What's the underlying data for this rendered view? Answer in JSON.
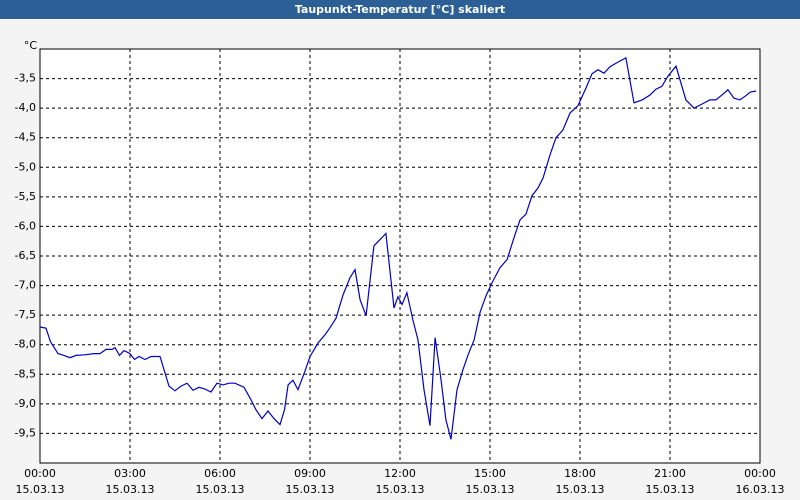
{
  "chart_data": {
    "type": "line",
    "title": "Taupunkt-Temperatur [°C] skaliert",
    "y_unit": "°C",
    "xlim": [
      0,
      24
    ],
    "ylim": [
      -10,
      -3
    ],
    "grid": true,
    "xticks": [
      {
        "value": 0,
        "label": "00:00",
        "date": "15.03.13"
      },
      {
        "value": 3,
        "label": "03:00",
        "date": "15.03.13"
      },
      {
        "value": 6,
        "label": "06:00",
        "date": "15.03.13"
      },
      {
        "value": 9,
        "label": "09:00",
        "date": "15.03.13"
      },
      {
        "value": 12,
        "label": "12:00",
        "date": "15.03.13"
      },
      {
        "value": 15,
        "label": "15:00",
        "date": "15.03.13"
      },
      {
        "value": 18,
        "label": "18:00",
        "date": "15.03.13"
      },
      {
        "value": 21,
        "label": "21:00",
        "date": "15.03.13"
      },
      {
        "value": 24,
        "label": "00:00",
        "date": "16.03.13"
      }
    ],
    "yticks": [
      {
        "value": -9.5,
        "label": "-9,5"
      },
      {
        "value": -9,
        "label": "-9,0"
      },
      {
        "value": -8.5,
        "label": "-8,5"
      },
      {
        "value": -8,
        "label": "-8,0"
      },
      {
        "value": -7.5,
        "label": "-7,5"
      },
      {
        "value": -7,
        "label": "-7,0"
      },
      {
        "value": -6.5,
        "label": "-6,5"
      },
      {
        "value": -6,
        "label": "-6,0"
      },
      {
        "value": -5.5,
        "label": "-5,5"
      },
      {
        "value": -5,
        "label": "-5,0"
      },
      {
        "value": -4.5,
        "label": "-4,5"
      },
      {
        "value": -4,
        "label": "-4,0"
      },
      {
        "value": -3.5,
        "label": "-3,5"
      }
    ],
    "series": [
      {
        "color": "#0000c8",
        "x": [
          0,
          0.2,
          0.35,
          0.6,
          0.8,
          1.0,
          1.2,
          1.5,
          1.8,
          2.0,
          2.2,
          2.4,
          2.5,
          2.65,
          2.8,
          3.0,
          3.15,
          3.3,
          3.5,
          3.7,
          4.0,
          4.3,
          4.5,
          4.7,
          4.9,
          5.1,
          5.3,
          5.5,
          5.7,
          5.9,
          6.1,
          6.3,
          6.5,
          6.8,
          7.0,
          7.2,
          7.4,
          7.6,
          7.8,
          8.0,
          8.15,
          8.27,
          8.43,
          8.6,
          8.83,
          9.0,
          9.27,
          9.5,
          9.67,
          9.87,
          10.1,
          10.33,
          10.5,
          10.67,
          10.87,
          11.13,
          11.53,
          11.8,
          11.93,
          12.07,
          12.23,
          12.43,
          12.6,
          12.8,
          13.0,
          13.17,
          13.37,
          13.53,
          13.7,
          13.9,
          14.1,
          14.27,
          14.47,
          14.67,
          14.87,
          15.07,
          15.33,
          15.57,
          15.8,
          16.0,
          16.2,
          16.4,
          16.6,
          16.77,
          17.0,
          17.2,
          17.43,
          17.67,
          17.93,
          18.2,
          18.4,
          18.6,
          18.8,
          19.0,
          19.27,
          19.53,
          19.8,
          20.07,
          20.33,
          20.53,
          20.73,
          20.93,
          21.2,
          21.53,
          21.8,
          22.07,
          22.33,
          22.53,
          22.73,
          22.93,
          23.13,
          23.33,
          23.53,
          23.67,
          23.87
        ],
        "values": [
          -7.7,
          -7.72,
          -7.95,
          -8.15,
          -8.18,
          -8.22,
          -8.18,
          -8.17,
          -8.15,
          -8.15,
          -8.08,
          -8.08,
          -8.05,
          -8.18,
          -8.1,
          -8.15,
          -8.25,
          -8.2,
          -8.25,
          -8.2,
          -8.2,
          -8.7,
          -8.78,
          -8.7,
          -8.65,
          -8.77,
          -8.72,
          -8.75,
          -8.8,
          -8.65,
          -8.68,
          -8.65,
          -8.65,
          -8.72,
          -8.9,
          -9.1,
          -9.25,
          -9.12,
          -9.25,
          -9.35,
          -9.1,
          -8.68,
          -8.6,
          -8.76,
          -8.45,
          -8.2,
          -7.97,
          -7.83,
          -7.71,
          -7.55,
          -7.16,
          -6.87,
          -6.73,
          -7.24,
          -7.51,
          -6.33,
          -6.12,
          -7.38,
          -7.19,
          -7.32,
          -7.12,
          -7.58,
          -7.92,
          -8.76,
          -9.37,
          -7.88,
          -8.6,
          -9.27,
          -9.6,
          -8.76,
          -8.42,
          -8.17,
          -7.92,
          -7.45,
          -7.17,
          -6.95,
          -6.7,
          -6.56,
          -6.19,
          -5.89,
          -5.79,
          -5.48,
          -5.35,
          -5.18,
          -4.79,
          -4.5,
          -4.37,
          -4.08,
          -3.96,
          -3.66,
          -3.42,
          -3.35,
          -3.41,
          -3.3,
          -3.22,
          -3.15,
          -3.91,
          -3.86,
          -3.78,
          -3.68,
          -3.63,
          -3.46,
          -3.29,
          -3.86,
          -4.0,
          -3.93,
          -3.86,
          -3.86,
          -3.78,
          -3.69,
          -3.83,
          -3.86,
          -3.79,
          -3.73,
          -3.71
        ]
      }
    ]
  }
}
